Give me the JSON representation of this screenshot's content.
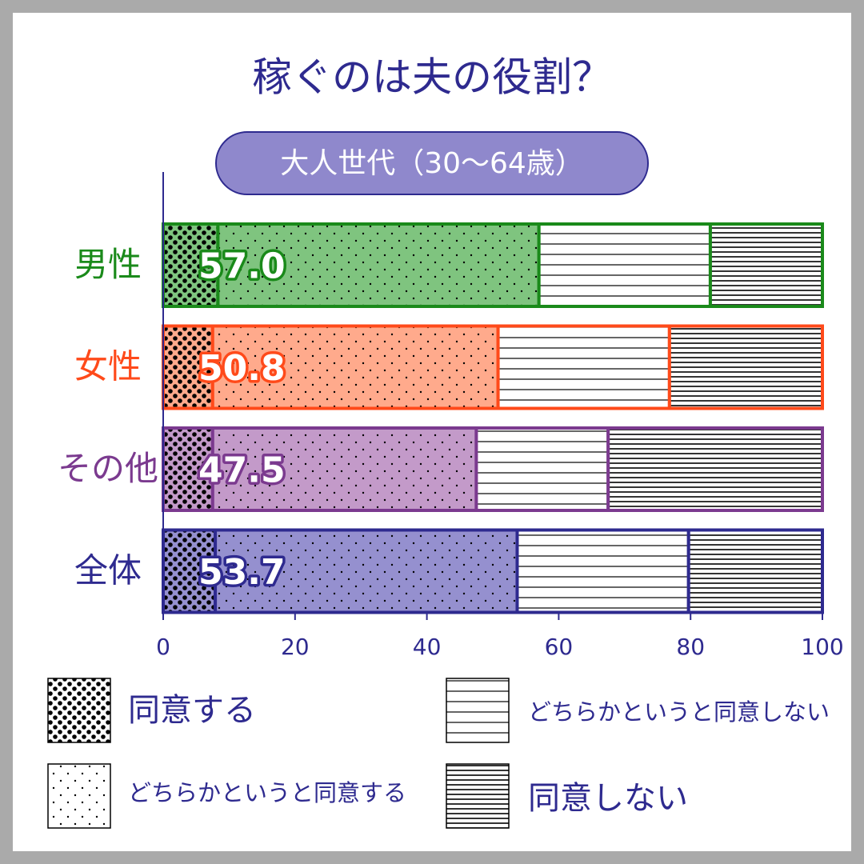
{
  "chart_data": {
    "type": "bar",
    "orientation": "horizontal",
    "stacked": true,
    "title": "稼ぐのは夫の役割？",
    "subtitle": "大人世代（30～64歳）",
    "categories": [
      "男性",
      "女性",
      "その他",
      "全体"
    ],
    "category_colors": [
      "#1a8a1a",
      "#ff4a1a",
      "#7b3a8f",
      "#2e2a8f"
    ],
    "category_fills": [
      "#7fc47f",
      "#ffaa8c",
      "#c39ac9",
      "#9590cf"
    ],
    "series": [
      {
        "name": "同意する",
        "pattern": "dense-dots",
        "values": [
          8.3,
          7.5,
          7.5,
          7.9
        ]
      },
      {
        "name": "どちらかというと同意する",
        "pattern": "sparse-dots",
        "values": [
          48.7,
          43.3,
          40.0,
          45.8
        ]
      },
      {
        "name": "どちらかというと同意しない",
        "pattern": "sparse-lines",
        "values": [
          26.0,
          26.0,
          20.0,
          26.0
        ]
      },
      {
        "name": "同意しない",
        "pattern": "dense-lines",
        "values": [
          17.0,
          23.2,
          32.5,
          20.3
        ]
      }
    ],
    "total_labels": [
      {
        "value": 57.0,
        "label": "57.0"
      },
      {
        "value": 50.8,
        "label": "50.8"
      },
      {
        "value": 47.5,
        "label": "47.5"
      },
      {
        "value": 53.7,
        "label": "53.7"
      }
    ],
    "xlim": [
      0,
      100
    ],
    "xticks": [
      0,
      20,
      40,
      60,
      80,
      100
    ]
  }
}
